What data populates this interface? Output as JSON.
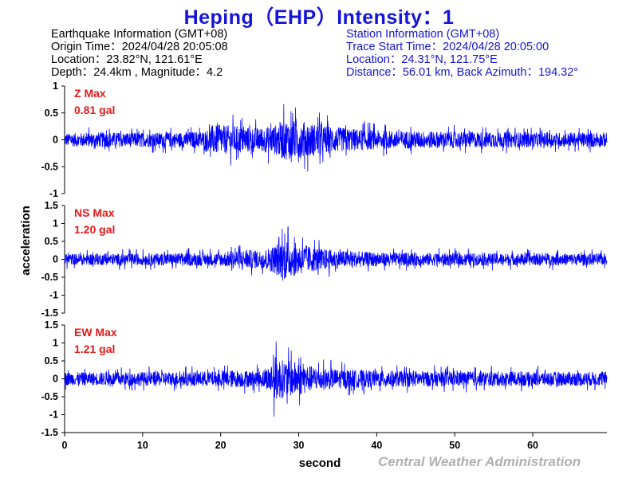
{
  "header": {
    "title": "Heping（EHP）Intensity：1"
  },
  "earthquake_info": {
    "heading": "Earthquake Information  (GMT+08)",
    "origin_time": "Origin Time：2024/04/28 20:05:08",
    "location": "Location：23.82°N, 121.61°E",
    "depth_magnitude": "Depth：24.4km , Magnitude：4.2"
  },
  "station_info": {
    "heading": "Station Information  (GMT+08)",
    "trace_start": "Trace Start Time：2024/04/28 20:05:00",
    "location": "Location：24.31°N, 121.75°E",
    "distance": "Distance：56.01 km, Back Azimuth：194.32°"
  },
  "credit": "Central Weather Administration",
  "chart_data": {
    "type": "line",
    "xlabel": "second",
    "ylabel": "acceleration",
    "xlim": [
      0,
      69.5
    ],
    "xticks": [
      0,
      10,
      20,
      30,
      40,
      50,
      60
    ],
    "grid": false,
    "legend": "none",
    "line_color": "#0000ff",
    "label_color": "#e41a1a",
    "panels": [
      {
        "component": "Z",
        "max_label": "Z Max",
        "max_value_label": "0.81 gal",
        "ylim": [
          -1,
          1
        ],
        "yticks": [
          -1,
          -0.5,
          0,
          0.5,
          1
        ],
        "yticklabels": [
          "-1",
          "-0.5",
          "0",
          "0.5",
          "1"
        ],
        "envelope": [
          [
            0,
            0.22
          ],
          [
            5,
            0.26
          ],
          [
            10,
            0.24
          ],
          [
            15,
            0.26
          ],
          [
            18,
            0.3
          ],
          [
            19,
            0.5
          ],
          [
            22,
            0.48
          ],
          [
            25,
            0.4
          ],
          [
            27,
            0.5
          ],
          [
            28,
            0.68
          ],
          [
            30,
            0.65
          ],
          [
            32,
            0.55
          ],
          [
            35,
            0.42
          ],
          [
            40,
            0.32
          ],
          [
            45,
            0.3
          ],
          [
            50,
            0.28
          ],
          [
            55,
            0.27
          ],
          [
            60,
            0.25
          ],
          [
            65,
            0.24
          ],
          [
            69.5,
            0.25
          ]
        ]
      },
      {
        "component": "NS",
        "max_label": "NS Max",
        "max_value_label": "1.20 gal",
        "ylim": [
          -1.5,
          1.5
        ],
        "yticks": [
          -1.5,
          -1,
          -0.5,
          0,
          0.5,
          1,
          1.5
        ],
        "yticklabels": [
          "-1.5",
          "-1",
          "-0.5",
          "0",
          "0.5",
          "1",
          "1.5"
        ],
        "envelope": [
          [
            0,
            0.28
          ],
          [
            10,
            0.3
          ],
          [
            20,
            0.34
          ],
          [
            22,
            0.5
          ],
          [
            25,
            0.45
          ],
          [
            26,
            0.55
          ],
          [
            27,
            0.75
          ],
          [
            28,
            1.1
          ],
          [
            29,
            0.9
          ],
          [
            31,
            0.7
          ],
          [
            33,
            0.55
          ],
          [
            35,
            0.45
          ],
          [
            40,
            0.35
          ],
          [
            50,
            0.32
          ],
          [
            60,
            0.3
          ],
          [
            69.5,
            0.3
          ]
        ]
      },
      {
        "component": "EW",
        "max_label": "EW Max",
        "max_value_label": "1.21 gal",
        "ylim": [
          -1.5,
          1.5
        ],
        "yticks": [
          -1.5,
          -1,
          -0.5,
          0,
          0.5,
          1,
          1.5
        ],
        "yticklabels": [
          "-1.5",
          "-1",
          "-0.5",
          "0",
          "0.5",
          "1",
          "1.5"
        ],
        "envelope": [
          [
            0,
            0.33
          ],
          [
            10,
            0.35
          ],
          [
            20,
            0.38
          ],
          [
            21,
            0.45
          ],
          [
            25,
            0.4
          ],
          [
            26,
            0.55
          ],
          [
            27,
            1.15
          ],
          [
            28,
            0.95
          ],
          [
            30,
            0.85
          ],
          [
            32,
            0.6
          ],
          [
            35,
            0.5
          ],
          [
            40,
            0.42
          ],
          [
            50,
            0.38
          ],
          [
            60,
            0.36
          ],
          [
            69.5,
            0.36
          ]
        ]
      }
    ]
  }
}
